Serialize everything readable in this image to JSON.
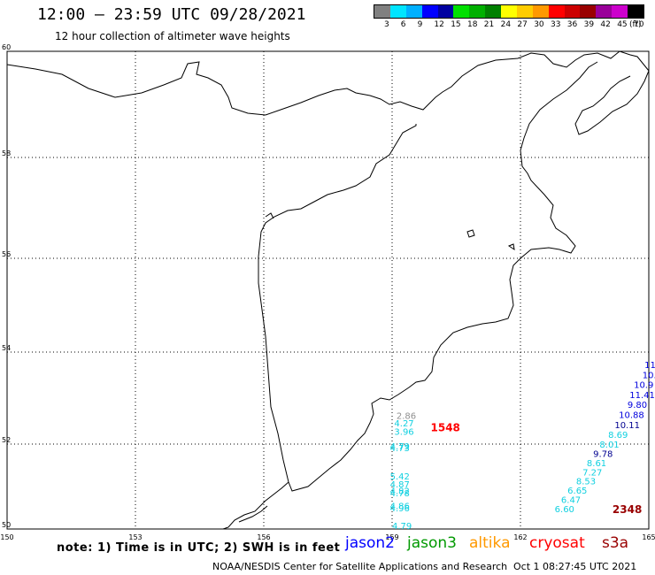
{
  "header": {
    "title": "12:00 – 23:59 UTC 09/28/2021",
    "subtitle": "12 hour collection of altimeter wave heights"
  },
  "legend": {
    "unit": "(ft)",
    "colors": [
      "#808080",
      "#00e5ff",
      "#00b0ff",
      "#0000ff",
      "#0000a0",
      "#00e000",
      "#00b000",
      "#008000",
      "#ffff00",
      "#ffcc00",
      "#ff9900",
      "#ff0000",
      "#cc0000",
      "#990000",
      "#990099",
      "#cc00cc",
      "#000000"
    ],
    "labels": [
      "3",
      "6",
      "9",
      "12",
      "15",
      "18",
      "21",
      "24",
      "27",
      "30",
      "33",
      "36",
      "39",
      "42",
      "45",
      "70"
    ]
  },
  "map": {
    "lat_labels": [
      "60",
      "58",
      "56",
      "54",
      "52",
      "50"
    ],
    "lon_labels": [
      "150",
      "153",
      "156",
      "159",
      "162",
      "165"
    ],
    "marker_colors": {
      "jason3_cyan": "#10d0e0",
      "grey": "#909090",
      "jason2_blue": "#0000dd",
      "jason2_dark": "#000090",
      "cryosat": "#ff0000",
      "s3a": "#990000"
    },
    "wave_readings": [
      {
        "text": "2.86",
        "color": "grey",
        "lat": 52.55,
        "lon": 159.1
      },
      {
        "text": "4.27",
        "color": "jason3_cyan",
        "lat": 52.38,
        "lon": 159.05
      },
      {
        "text": "3.96",
        "color": "jason3_cyan",
        "lat": 52.2,
        "lon": 159.05
      },
      {
        "text": "4.79",
        "color": "jason3_cyan",
        "lat": 51.87,
        "lon": 158.95
      },
      {
        "text": "4.73",
        "color": "jason3_cyan",
        "lat": 51.83,
        "lon": 158.95
      },
      {
        "text": "5.42",
        "color": "jason3_cyan",
        "lat": 51.17,
        "lon": 158.95
      },
      {
        "text": "4.87",
        "color": "jason3_cyan",
        "lat": 50.98,
        "lon": 158.95
      },
      {
        "text": "4.82",
        "color": "jason3_cyan",
        "lat": 50.82,
        "lon": 158.95
      },
      {
        "text": "4.78",
        "color": "jason3_cyan",
        "lat": 50.77,
        "lon": 158.95
      },
      {
        "text": "4.86",
        "color": "jason3_cyan",
        "lat": 50.47,
        "lon": 158.95
      },
      {
        "text": "4.96",
        "color": "jason3_cyan",
        "lat": 50.42,
        "lon": 158.95
      },
      {
        "text": "4.79",
        "color": "jason3_cyan",
        "lat": 49.97,
        "lon": 159.0
      },
      {
        "text": "11",
        "color": "jason2_blue",
        "lat": 53.65,
        "lon": 164.9
      },
      {
        "text": "10.",
        "color": "jason2_blue",
        "lat": 53.43,
        "lon": 164.85
      },
      {
        "text": "10.9",
        "color": "jason2_blue",
        "lat": 53.22,
        "lon": 164.65
      },
      {
        "text": "11.41",
        "color": "jason2_blue",
        "lat": 53.0,
        "lon": 164.55
      },
      {
        "text": "9.80",
        "color": "jason2_blue",
        "lat": 52.79,
        "lon": 164.5
      },
      {
        "text": "10.88",
        "color": "jason2_blue",
        "lat": 52.57,
        "lon": 164.3
      },
      {
        "text": "10.11",
        "color": "jason2_dark",
        "lat": 52.35,
        "lon": 164.2
      },
      {
        "text": "8.69",
        "color": "jason3_cyan",
        "lat": 52.13,
        "lon": 164.05
      },
      {
        "text": "8.01",
        "color": "jason3_cyan",
        "lat": 51.92,
        "lon": 163.85
      },
      {
        "text": "9.78",
        "color": "jason2_dark",
        "lat": 51.7,
        "lon": 163.7
      },
      {
        "text": "8.61",
        "color": "jason3_cyan",
        "lat": 51.48,
        "lon": 163.55
      },
      {
        "text": "7.27",
        "color": "jason3_cyan",
        "lat": 51.26,
        "lon": 163.45
      },
      {
        "text": "8.53",
        "color": "jason3_cyan",
        "lat": 51.05,
        "lon": 163.3
      },
      {
        "text": "6.65",
        "color": "jason3_cyan",
        "lat": 50.83,
        "lon": 163.1
      },
      {
        "text": "6.47",
        "color": "jason3_cyan",
        "lat": 50.61,
        "lon": 162.95
      },
      {
        "text": "6.60",
        "color": "jason3_cyan",
        "lat": 50.4,
        "lon": 162.8
      }
    ],
    "time_stamps": [
      {
        "text": "1548",
        "color": "cryosat",
        "lat": 52.28,
        "lon": 159.9
      },
      {
        "text": "2348",
        "color": "s3a",
        "lat": 50.38,
        "lon": 164.15
      }
    ]
  },
  "footer": {
    "note": "note: 1) Time is in UTC; 2) SWH is in feet",
    "satellites": [
      {
        "name": "jason2",
        "color": "#0000ff"
      },
      {
        "name": "jason3",
        "color": "#009900"
      },
      {
        "name": "altika",
        "color": "#ff9900"
      },
      {
        "name": "cryosat",
        "color": "#ff0000"
      },
      {
        "name": "s3a",
        "color": "#990000"
      }
    ],
    "credit": "NOAA/NESDIS Center for Satellite Applications and Research",
    "stamp": "Oct  1 08:27:45 UTC 2021"
  }
}
